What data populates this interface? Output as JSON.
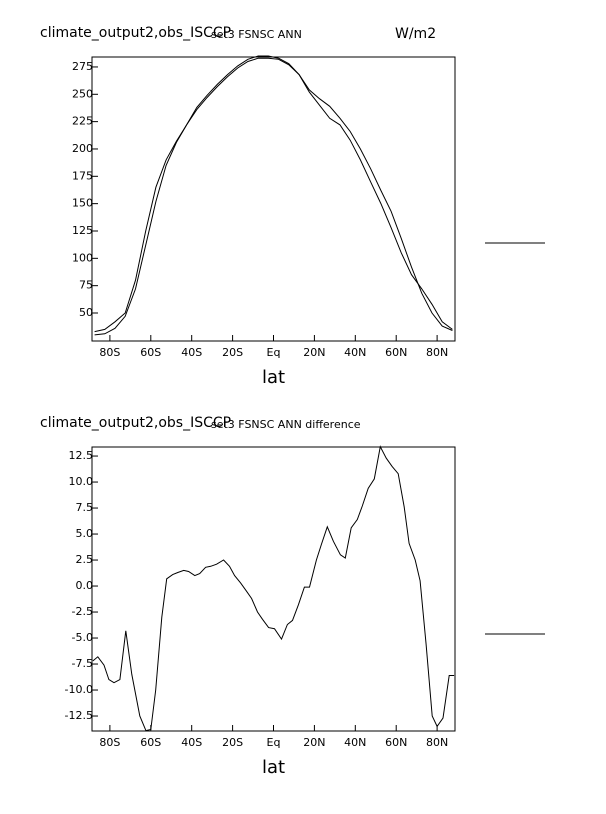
{
  "chart_data": [
    {
      "type": "line",
      "title": "climate_output2,obs_ISCCP",
      "subtitle": "set3 FSNSC ANN",
      "units": "W/m2",
      "xlabel": "lat",
      "x": [
        -87.5,
        -82.5,
        -77.5,
        -72.5,
        -67.5,
        -62.5,
        -57.5,
        -52.5,
        -47.5,
        -42.5,
        -37.5,
        -32.5,
        -27.5,
        -22.5,
        -17.5,
        -12.5,
        -7.5,
        -2.5,
        2.5,
        7.5,
        12.5,
        17.5,
        22.5,
        27.5,
        32.5,
        37.5,
        42.5,
        47.5,
        52.5,
        57.5,
        62.5,
        67.5,
        72.5,
        77.5,
        82.5,
        87.5
      ],
      "series": [
        {
          "color": "#000000",
          "values": [
            33,
            35,
            42,
            50,
            80,
            125,
            165,
            190,
            207,
            222,
            236,
            247,
            257,
            266,
            274,
            280,
            283,
            283,
            282,
            277,
            268,
            254,
            246,
            239,
            228,
            216,
            200,
            182,
            162,
            143,
            118,
            92,
            68,
            50,
            38,
            34
          ]
        },
        {
          "color": "#000000",
          "values": [
            30,
            31,
            36,
            47,
            72,
            112,
            152,
            185,
            206,
            222,
            238,
            249,
            259,
            268,
            276,
            282,
            285,
            285,
            283,
            278,
            268,
            252,
            240,
            228,
            222,
            208,
            190,
            170,
            150,
            128,
            105,
            85,
            72,
            58,
            42,
            35
          ]
        }
      ],
      "xlim": [
        -88.75,
        88.75
      ],
      "xticks": [
        {
          "value": -80,
          "label": "80S"
        },
        {
          "value": -60,
          "label": "60S"
        },
        {
          "value": -40,
          "label": "40S"
        },
        {
          "value": -20,
          "label": "20S"
        },
        {
          "value": 0,
          "label": "Eq"
        },
        {
          "value": 20,
          "label": "20N"
        },
        {
          "value": 40,
          "label": "40N"
        },
        {
          "value": 60,
          "label": "60N"
        },
        {
          "value": 80,
          "label": "80N"
        }
      ],
      "ylim": [
        24.4,
        284.1
      ],
      "yticks": [
        50,
        75,
        100,
        125,
        150,
        175,
        200,
        225,
        250,
        275
      ]
    },
    {
      "type": "line",
      "title": "climate_output2,obs_ISCCP",
      "subtitle": "set3 FSNSC ANN difference",
      "xlabel": "lat",
      "x": [
        -88.3,
        -85.9,
        -82.9,
        -80.5,
        -78.0,
        -75.1,
        -72.2,
        -69.3,
        -65.4,
        -62.4,
        -60.0,
        -57.6,
        -54.6,
        -52.2,
        -49.3,
        -46.8,
        -43.9,
        -41.5,
        -38.5,
        -36.1,
        -33.2,
        -30.7,
        -27.8,
        -24.4,
        -21.5,
        -19.0,
        -16.1,
        -13.2,
        -10.7,
        -7.8,
        -5.4,
        -2.4,
        0.5,
        3.9,
        6.8,
        9.3,
        12.2,
        15.1,
        17.6,
        21.0,
        23.4,
        26.3,
        29.3,
        32.7,
        35.1,
        38.0,
        41.0,
        43.4,
        46.3,
        49.3,
        52.2,
        55.1,
        58.0,
        61.0,
        63.9,
        66.3,
        69.3,
        71.7,
        74.6,
        77.6,
        80.0,
        82.9,
        85.9,
        88.3
      ],
      "series": [
        {
          "color": "#000000",
          "values": [
            -7.2,
            -6.8,
            -7.6,
            -9.0,
            -9.3,
            -9.0,
            -4.3,
            -8.5,
            -12.5,
            -13.9,
            -13.8,
            -10.0,
            -3.0,
            0.7,
            1.1,
            1.3,
            1.5,
            1.4,
            1.0,
            1.2,
            1.8,
            1.9,
            2.1,
            2.5,
            1.9,
            1.0,
            0.3,
            -0.5,
            -1.2,
            -2.5,
            -3.2,
            -4.0,
            -4.1,
            -5.1,
            -3.7,
            -3.3,
            -1.8,
            -0.1,
            -0.1,
            2.5,
            4.0,
            5.7,
            4.3,
            3.0,
            2.7,
            5.6,
            6.4,
            7.7,
            9.4,
            10.3,
            13.4,
            12.3,
            11.5,
            10.8,
            7.6,
            4.1,
            2.5,
            0.5,
            -5.6,
            -12.5,
            -13.5,
            -12.7,
            -8.6,
            -8.6
          ]
        }
      ],
      "xlim": [
        -88.75,
        88.75
      ],
      "xticks": [
        {
          "value": -80,
          "label": "80S"
        },
        {
          "value": -60,
          "label": "60S"
        },
        {
          "value": -40,
          "label": "40S"
        },
        {
          "value": -20,
          "label": "20S"
        },
        {
          "value": 0,
          "label": "Eq"
        },
        {
          "value": 20,
          "label": "20N"
        },
        {
          "value": 40,
          "label": "40N"
        },
        {
          "value": 60,
          "label": "60N"
        },
        {
          "value": 80,
          "label": "80N"
        }
      ],
      "ylim": [
        -13.94,
        13.37
      ],
      "yticks": [
        12.5,
        {
          "value": 10,
          "label": "10.0"
        },
        7.5,
        {
          "value": 5,
          "label": "5.0"
        },
        2.5,
        {
          "value": 0,
          "label": "0.0"
        },
        -2.5,
        {
          "value": -5,
          "label": "-5.0"
        },
        -7.5,
        {
          "value": -10,
          "label": "-10.0"
        },
        -12.5
      ]
    }
  ]
}
